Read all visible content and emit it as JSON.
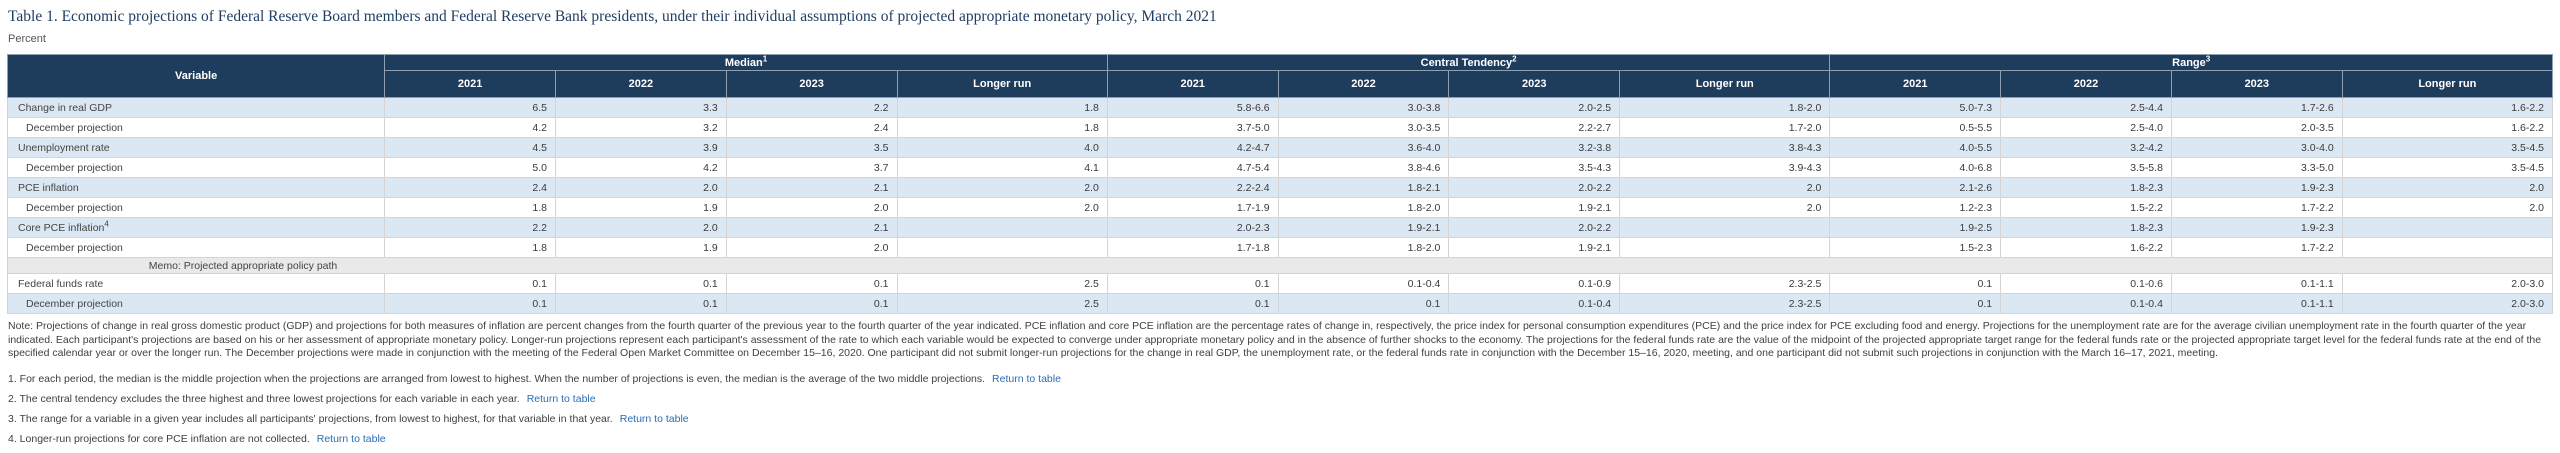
{
  "page": {
    "title": "Table 1. Economic projections of Federal Reserve Board members and Federal Reserve Bank presidents, under their individual assumptions of projected appropriate monetary policy, March 2021",
    "unit_label": "Percent"
  },
  "table": {
    "corner_header": "Variable",
    "groups": [
      {
        "label": "Median",
        "footnote": "1"
      },
      {
        "label": "Central Tendency",
        "footnote": "2"
      },
      {
        "label": "Range",
        "footnote": "3"
      }
    ],
    "year_headers": [
      "2021",
      "2022",
      "2023",
      "Longer run"
    ],
    "rows": [
      {
        "label": "Change in real GDP",
        "indent": false,
        "shaded": true,
        "values": [
          "6.5",
          "3.3",
          "2.2",
          "1.8",
          "5.8-6.6",
          "3.0-3.8",
          "2.0-2.5",
          "1.8-2.0",
          "5.0-7.3",
          "2.5-4.4",
          "1.7-2.6",
          "1.6-2.2"
        ]
      },
      {
        "label": "December projection",
        "indent": true,
        "shaded": false,
        "values": [
          "4.2",
          "3.2",
          "2.4",
          "1.8",
          "3.7-5.0",
          "3.0-3.5",
          "2.2-2.7",
          "1.7-2.0",
          "0.5-5.5",
          "2.5-4.0",
          "2.0-3.5",
          "1.6-2.2"
        ]
      },
      {
        "label": "Unemployment rate",
        "indent": false,
        "shaded": true,
        "values": [
          "4.5",
          "3.9",
          "3.5",
          "4.0",
          "4.2-4.7",
          "3.6-4.0",
          "3.2-3.8",
          "3.8-4.3",
          "4.0-5.5",
          "3.2-4.2",
          "3.0-4.0",
          "3.5-4.5"
        ]
      },
      {
        "label": "December projection",
        "indent": true,
        "shaded": false,
        "values": [
          "5.0",
          "4.2",
          "3.7",
          "4.1",
          "4.7-5.4",
          "3.8-4.6",
          "3.5-4.3",
          "3.9-4.3",
          "4.0-6.8",
          "3.5-5.8",
          "3.3-5.0",
          "3.5-4.5"
        ]
      },
      {
        "label": "PCE inflation",
        "indent": false,
        "shaded": true,
        "values": [
          "2.4",
          "2.0",
          "2.1",
          "2.0",
          "2.2-2.4",
          "1.8-2.1",
          "2.0-2.2",
          "2.0",
          "2.1-2.6",
          "1.8-2.3",
          "1.9-2.3",
          "2.0"
        ]
      },
      {
        "label": "December projection",
        "indent": true,
        "shaded": false,
        "values": [
          "1.8",
          "1.9",
          "2.0",
          "2.0",
          "1.7-1.9",
          "1.8-2.0",
          "1.9-2.1",
          "2.0",
          "1.2-2.3",
          "1.5-2.2",
          "1.7-2.2",
          "2.0"
        ]
      },
      {
        "label": "Core PCE inflation",
        "label_footnote": "4",
        "indent": false,
        "shaded": true,
        "values": [
          "2.2",
          "2.0",
          "2.1",
          "",
          "2.0-2.3",
          "1.9-2.1",
          "2.0-2.2",
          "",
          "1.9-2.5",
          "1.8-2.3",
          "1.9-2.3",
          ""
        ]
      },
      {
        "label": "December projection",
        "indent": true,
        "shaded": false,
        "values": [
          "1.8",
          "1.9",
          "2.0",
          "",
          "1.7-1.8",
          "1.8-2.0",
          "1.9-2.1",
          "",
          "1.5-2.3",
          "1.6-2.2",
          "1.7-2.2",
          ""
        ]
      }
    ],
    "memo_row_label": "Memo: Projected appropriate policy path",
    "rows_after_memo": [
      {
        "label": "Federal funds rate",
        "indent": false,
        "shaded": false,
        "values": [
          "0.1",
          "0.1",
          "0.1",
          "2.5",
          "0.1",
          "0.1-0.4",
          "0.1-0.9",
          "2.3-2.5",
          "0.1",
          "0.1-0.6",
          "0.1-1.1",
          "2.0-3.0"
        ]
      },
      {
        "label": "December projection",
        "indent": true,
        "shaded": true,
        "values": [
          "0.1",
          "0.1",
          "0.1",
          "2.5",
          "0.1",
          "0.1",
          "0.1-0.4",
          "2.3-2.5",
          "0.1",
          "0.1-0.4",
          "0.1-1.1",
          "2.0-3.0"
        ]
      }
    ]
  },
  "note": "Note: Projections of change in real gross domestic product (GDP) and projections for both measures of inflation are percent changes from the fourth quarter of the previous year to the fourth quarter of the year indicated. PCE inflation and core PCE inflation are the percentage rates of change in, respectively, the price index for personal consumption expenditures (PCE) and the price index for PCE excluding food and energy. Projections for the unemployment rate are for the average civilian unemployment rate in the fourth quarter of the year indicated. Each participant's projections are based on his or her assessment of appropriate monetary policy. Longer-run projections represent each participant's assessment of the rate to which each variable would be expected to converge under appropriate monetary policy and in the absence of further shocks to the economy. The projections for the federal funds rate are the value of the midpoint of the projected appropriate target range for the federal funds rate or the projected appropriate target level for the federal funds rate at the end of the specified calendar year or over the longer run. The December projections were made in conjunction with the meeting of the Federal Open Market Committee on December 15–16, 2020. One participant did not submit longer-run projections for the change in real GDP, the unemployment rate, or the federal funds rate in conjunction with the December 15–16, 2020, meeting, and one participant did not submit such projections in conjunction with the March 16–17, 2021, meeting.",
  "footnotes": [
    {
      "text": "1. For each period, the median is the middle projection when the projections are arranged from lowest to highest. When the number of projections is even, the median is the average of the two middle projections.",
      "link_label": "Return to table"
    },
    {
      "text": "2. The central tendency excludes the three highest and three lowest projections for each variable in each year.",
      "link_label": "Return to table"
    },
    {
      "text": "3. The range for a variable in a given year includes all participants' projections, from lowest to highest, for that variable in that year.",
      "link_label": "Return to table"
    },
    {
      "text": "4. Longer-run projections for core PCE inflation are not collected.",
      "link_label": "Return to table"
    }
  ]
}
